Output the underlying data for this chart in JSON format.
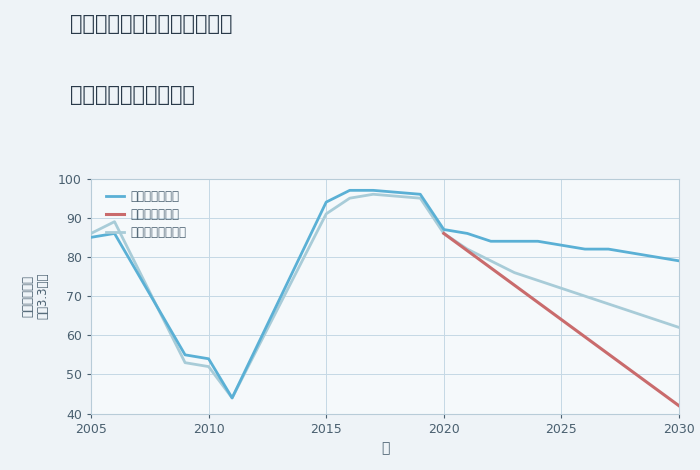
{
  "title_line1": "兵庫県姫路市広畑区小松町の",
  "title_line2": "中古戸建ての価格推移",
  "xlabel": "年",
  "ylabel_top": "単価（万円）",
  "ylabel_bottom": "坪（3.3㎡）",
  "xlim": [
    2005,
    2030
  ],
  "ylim": [
    40,
    100
  ],
  "yticks": [
    40,
    50,
    60,
    70,
    80,
    90,
    100
  ],
  "xticks": [
    2005,
    2010,
    2015,
    2020,
    2025,
    2030
  ],
  "bg_color": "#eef3f7",
  "plot_bg_color": "#f5f9fb",
  "grid_color": "#c5d8e5",
  "tick_color": "#4a6070",
  "good_scenario": {
    "label": "グッドシナリオ",
    "color": "#5ab0d5",
    "linewidth": 2.0,
    "x": [
      2005,
      2006,
      2009,
      2010,
      2011,
      2015,
      2016,
      2017,
      2019,
      2020,
      2021,
      2022,
      2023,
      2024,
      2025,
      2026,
      2027,
      2028,
      2029,
      2030
    ],
    "y": [
      85,
      86,
      55,
      54,
      44,
      94,
      97,
      97,
      96,
      87,
      86,
      84,
      84,
      84,
      83,
      82,
      82,
      81,
      80,
      79
    ]
  },
  "bad_scenario": {
    "label": "バッドシナリオ",
    "color": "#c96b6c",
    "linewidth": 2.2,
    "x": [
      2020,
      2030
    ],
    "y": [
      86,
      42
    ]
  },
  "normal_scenario": {
    "label": "ノーマルシナリオ",
    "color": "#a8ccd8",
    "linewidth": 2.0,
    "x": [
      2005,
      2006,
      2009,
      2010,
      2011,
      2015,
      2016,
      2017,
      2019,
      2020,
      2021,
      2022,
      2023,
      2024,
      2025,
      2026,
      2027,
      2028,
      2029,
      2030
    ],
    "y": [
      86,
      89,
      53,
      52,
      44,
      91,
      95,
      96,
      95,
      86,
      82,
      79,
      76,
      74,
      72,
      70,
      68,
      66,
      64,
      62
    ]
  }
}
